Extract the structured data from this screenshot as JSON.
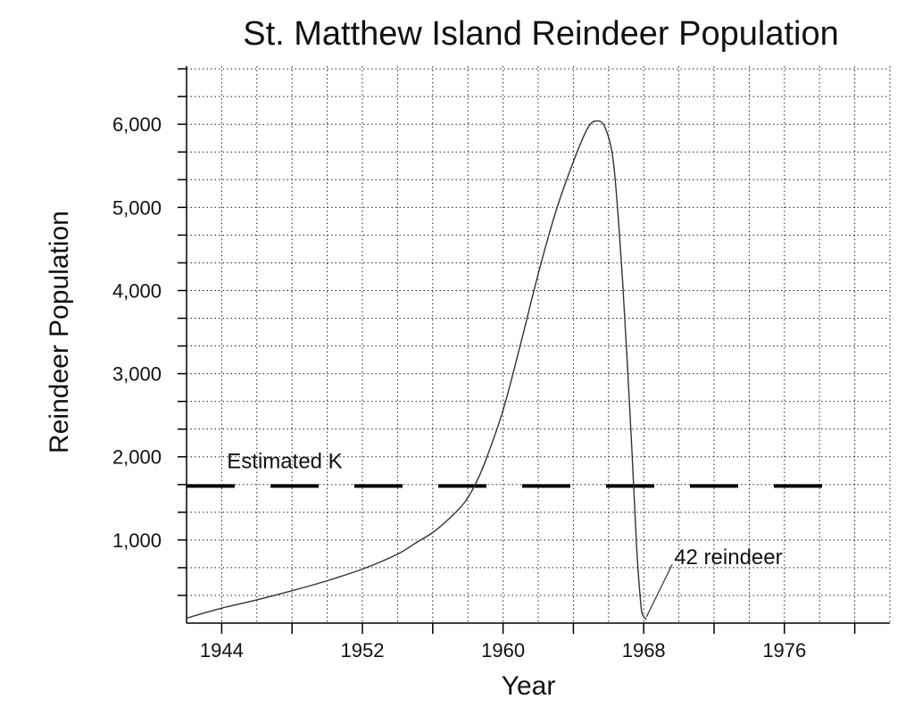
{
  "chart_data": {
    "type": "line",
    "title": "St. Matthew Island Reindeer Population",
    "xlabel": "Year",
    "ylabel": "Reindeer Population",
    "xlim": [
      1942,
      1982
    ],
    "ylim": [
      0,
      6700
    ],
    "x_ticks": [
      1944,
      1948,
      1952,
      1956,
      1960,
      1964,
      1968,
      1972,
      1976,
      1980
    ],
    "x_tick_labels": [
      "1944",
      "1952",
      "1960",
      "1968",
      "1976"
    ],
    "x_tick_label_years": [
      1944,
      1952,
      1960,
      1968,
      1976
    ],
    "y_ticks": [
      1000,
      2000,
      3000,
      4000,
      5000,
      6000
    ],
    "y_tick_labels": [
      "1,000",
      "2,000",
      "3,000",
      "4,000",
      "5,000",
      "6,000"
    ],
    "grid": true,
    "series": [
      {
        "x": [
          1942,
          1944,
          1946,
          1948,
          1950,
          1952,
          1954,
          1955,
          1956,
          1957,
          1957.8,
          1958.4,
          1959,
          1960,
          1961,
          1962,
          1963,
          1964,
          1964.8,
          1965.3,
          1965.8,
          1966.3,
          1966.8,
          1967.3,
          1967.6,
          1967.85,
          1968,
          1968.15
        ],
        "y": [
          60,
          180,
          280,
          390,
          510,
          650,
          830,
          960,
          1090,
          1270,
          1450,
          1660,
          1950,
          2560,
          3360,
          4200,
          4950,
          5550,
          5950,
          6040,
          5960,
          5500,
          4100,
          2200,
          900,
          200,
          80,
          42
        ]
      }
    ],
    "reference_line": {
      "label": "Estimated K",
      "y": 1650,
      "x_range": [
        1942,
        1979
      ]
    },
    "annotations": [
      {
        "text": "42 reindeer",
        "x": 1968,
        "y": 42
      }
    ]
  }
}
